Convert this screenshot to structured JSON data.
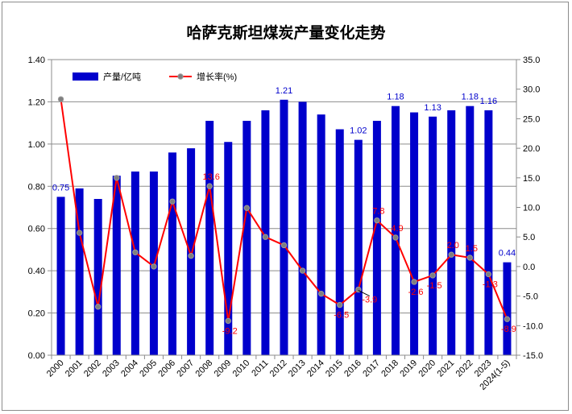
{
  "chart_data": {
    "type": "bar+line",
    "title": "哈萨克斯坦煤炭产量变化走势",
    "categories": [
      "2000",
      "2001",
      "2002",
      "2003",
      "2004",
      "2005",
      "2006",
      "2007",
      "2008",
      "2009",
      "2010",
      "2011",
      "2012",
      "2013",
      "2014",
      "2015",
      "2016",
      "2017",
      "2018",
      "2019",
      "2020",
      "2021",
      "2022",
      "2023",
      "2024(1-5)"
    ],
    "series": [
      {
        "name": "产量/亿吨",
        "type": "bar",
        "axis": "left",
        "color": "#0000cc",
        "values": [
          0.75,
          0.79,
          0.74,
          0.85,
          0.87,
          0.87,
          0.96,
          0.98,
          1.11,
          1.01,
          1.11,
          1.16,
          1.21,
          1.2,
          1.14,
          1.07,
          1.02,
          1.11,
          1.18,
          1.15,
          1.13,
          1.16,
          1.18,
          1.16,
          0.44
        ],
        "labels": [
          {
            "index": 0,
            "text": "0.75"
          },
          {
            "index": 12,
            "text": "1.21"
          },
          {
            "index": 16,
            "text": "1.02"
          },
          {
            "index": 18,
            "text": "1.18"
          },
          {
            "index": 20,
            "text": "1.13"
          },
          {
            "index": 22,
            "text": "1.18"
          },
          {
            "index": 23,
            "text": "1.16"
          },
          {
            "index": 24,
            "text": "0.44"
          }
        ]
      },
      {
        "name": "增长率(%)",
        "type": "line",
        "axis": "right",
        "color": "#ff0000",
        "marker_color": "#7f7f7f",
        "values": [
          28.3,
          5.7,
          -6.8,
          15.0,
          2.4,
          0.0,
          11.0,
          1.8,
          13.6,
          -9.2,
          9.9,
          5.0,
          3.6,
          -0.7,
          -4.6,
          -6.5,
          -3.9,
          7.8,
          4.9,
          -2.6,
          -1.5,
          2.0,
          1.5,
          -1.3,
          -8.9
        ],
        "labels": [
          {
            "index": 8,
            "text": "13.6"
          },
          {
            "index": 9,
            "text": "-9.2"
          },
          {
            "index": 15,
            "text": "-6.5"
          },
          {
            "index": 16,
            "text": "-3.9"
          },
          {
            "index": 17,
            "text": "7.8"
          },
          {
            "index": 18,
            "text": "4.9"
          },
          {
            "index": 19,
            "text": "-2.6"
          },
          {
            "index": 20,
            "text": "-1.5"
          },
          {
            "index": 21,
            "text": "2.0"
          },
          {
            "index": 22,
            "text": "1.5"
          },
          {
            "index": 23,
            "text": "-1.3"
          },
          {
            "index": 24,
            "text": "-8.9"
          }
        ]
      }
    ],
    "y_left": {
      "min": 0,
      "max": 1.4,
      "step": 0.2,
      "ticks": [
        "0.00",
        "0.20",
        "0.40",
        "0.60",
        "0.80",
        "1.00",
        "1.20",
        "1.40"
      ]
    },
    "y_right": {
      "min": -15,
      "max": 35,
      "step": 5,
      "ticks": [
        "-15.0",
        "-10.0",
        "-5.0",
        "0.0",
        "5.0",
        "10.0",
        "15.0",
        "20.0",
        "25.0",
        "30.0",
        "35.0"
      ]
    },
    "grid": true,
    "legend": {
      "position": "top-left"
    }
  }
}
